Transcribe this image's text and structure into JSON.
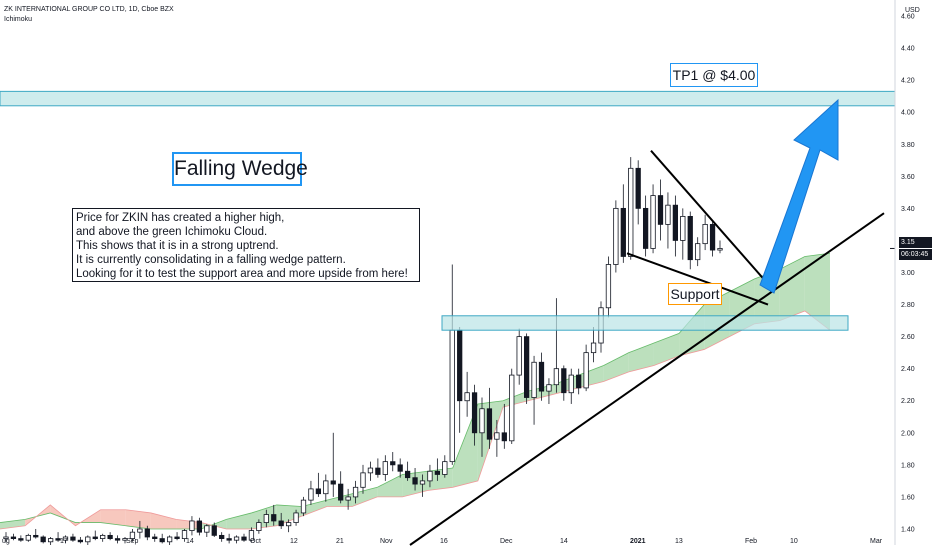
{
  "header": {
    "title": "ZK INTERNATIONAL GROUP CO LTD, 1D, Cboe BZX",
    "indicator": "Ichimoku"
  },
  "annotations": {
    "wedge_title": "Falling Wedge",
    "target": "TP1 @ $4.00",
    "support": "Support",
    "commentary": [
      "Price for ZKIN has created a higher high,",
      "and above the green Ichimoku Cloud.",
      "This shows that it is in a strong uptrend.",
      "It is currently consolidating in a falling wedge pattern.",
      "Looking for it to test the support area and more upside from here!"
    ]
  },
  "price_tags": {
    "last_price": "3.15",
    "countdown": "06:03:45"
  },
  "colors": {
    "up": "#ffffff",
    "down": "#131722",
    "cloud_bull": "#a5d6a7",
    "cloud_bear": "#f4b6a8",
    "zone": "#b9e4e6",
    "zone_border": "#3ea8c4",
    "arrow": "#2196f3",
    "tag_price": "#131722"
  },
  "chart_data": {
    "type": "candlestick",
    "currency": "USD",
    "ylim": [
      1.3,
      4.7
    ],
    "y_ticks": [
      "4.60",
      "4.40",
      "4.20",
      "4.00",
      "3.80",
      "3.60",
      "3.40",
      "3.20",
      "3.00",
      "2.80",
      "2.60",
      "2.40",
      "2.20",
      "2.00",
      "1.80",
      "1.60",
      "1.40"
    ],
    "x_ticks": [
      "ug",
      "17",
      "Sep",
      "14",
      "Oct",
      "12",
      "21",
      "Nov",
      "16",
      "Dec",
      "14",
      "2021",
      "13",
      "Feb",
      "10",
      "Mar"
    ],
    "candles": [
      {
        "o": 1.34,
        "h": 1.38,
        "l": 1.32,
        "c": 1.35
      },
      {
        "o": 1.35,
        "h": 1.37,
        "l": 1.33,
        "c": 1.34
      },
      {
        "o": 1.34,
        "h": 1.36,
        "l": 1.32,
        "c": 1.33
      },
      {
        "o": 1.33,
        "h": 1.37,
        "l": 1.32,
        "c": 1.36
      },
      {
        "o": 1.36,
        "h": 1.4,
        "l": 1.34,
        "c": 1.35
      },
      {
        "o": 1.35,
        "h": 1.36,
        "l": 1.31,
        "c": 1.32
      },
      {
        "o": 1.32,
        "h": 1.35,
        "l": 1.3,
        "c": 1.34
      },
      {
        "o": 1.34,
        "h": 1.38,
        "l": 1.32,
        "c": 1.33
      },
      {
        "o": 1.33,
        "h": 1.36,
        "l": 1.31,
        "c": 1.35
      },
      {
        "o": 1.35,
        "h": 1.37,
        "l": 1.32,
        "c": 1.33
      },
      {
        "o": 1.33,
        "h": 1.35,
        "l": 1.31,
        "c": 1.32
      },
      {
        "o": 1.32,
        "h": 1.36,
        "l": 1.3,
        "c": 1.35
      },
      {
        "o": 1.35,
        "h": 1.39,
        "l": 1.33,
        "c": 1.34
      },
      {
        "o": 1.34,
        "h": 1.37,
        "l": 1.32,
        "c": 1.36
      },
      {
        "o": 1.36,
        "h": 1.38,
        "l": 1.33,
        "c": 1.34
      },
      {
        "o": 1.34,
        "h": 1.36,
        "l": 1.31,
        "c": 1.33
      },
      {
        "o": 1.33,
        "h": 1.35,
        "l": 1.31,
        "c": 1.34
      },
      {
        "o": 1.34,
        "h": 1.4,
        "l": 1.32,
        "c": 1.38
      },
      {
        "o": 1.38,
        "h": 1.45,
        "l": 1.34,
        "c": 1.4
      },
      {
        "o": 1.4,
        "h": 1.42,
        "l": 1.33,
        "c": 1.35
      },
      {
        "o": 1.35,
        "h": 1.37,
        "l": 1.32,
        "c": 1.34
      },
      {
        "o": 1.34,
        "h": 1.37,
        "l": 1.31,
        "c": 1.32
      },
      {
        "o": 1.32,
        "h": 1.36,
        "l": 1.3,
        "c": 1.35
      },
      {
        "o": 1.35,
        "h": 1.38,
        "l": 1.33,
        "c": 1.34
      },
      {
        "o": 1.34,
        "h": 1.4,
        "l": 1.32,
        "c": 1.39
      },
      {
        "o": 1.39,
        "h": 1.48,
        "l": 1.36,
        "c": 1.45
      },
      {
        "o": 1.45,
        "h": 1.47,
        "l": 1.36,
        "c": 1.38
      },
      {
        "o": 1.38,
        "h": 1.43,
        "l": 1.35,
        "c": 1.42
      },
      {
        "o": 1.42,
        "h": 1.44,
        "l": 1.35,
        "c": 1.36
      },
      {
        "o": 1.36,
        "h": 1.38,
        "l": 1.32,
        "c": 1.34
      },
      {
        "o": 1.34,
        "h": 1.37,
        "l": 1.31,
        "c": 1.33
      },
      {
        "o": 1.33,
        "h": 1.36,
        "l": 1.31,
        "c": 1.35
      },
      {
        "o": 1.35,
        "h": 1.37,
        "l": 1.32,
        "c": 1.33
      },
      {
        "o": 1.33,
        "h": 1.41,
        "l": 1.32,
        "c": 1.39
      },
      {
        "o": 1.39,
        "h": 1.46,
        "l": 1.37,
        "c": 1.44
      },
      {
        "o": 1.44,
        "h": 1.52,
        "l": 1.41,
        "c": 1.49
      },
      {
        "o": 1.49,
        "h": 1.55,
        "l": 1.42,
        "c": 1.45
      },
      {
        "o": 1.45,
        "h": 1.5,
        "l": 1.4,
        "c": 1.42
      },
      {
        "o": 1.42,
        "h": 1.46,
        "l": 1.38,
        "c": 1.44
      },
      {
        "o": 1.44,
        "h": 1.52,
        "l": 1.42,
        "c": 1.5
      },
      {
        "o": 1.5,
        "h": 1.6,
        "l": 1.48,
        "c": 1.58
      },
      {
        "o": 1.58,
        "h": 1.7,
        "l": 1.55,
        "c": 1.65
      },
      {
        "o": 1.65,
        "h": 1.75,
        "l": 1.6,
        "c": 1.62
      },
      {
        "o": 1.62,
        "h": 1.74,
        "l": 1.57,
        "c": 1.7
      },
      {
        "o": 1.7,
        "h": 2.0,
        "l": 1.6,
        "c": 1.68
      },
      {
        "o": 1.68,
        "h": 1.76,
        "l": 1.56,
        "c": 1.58
      },
      {
        "o": 1.58,
        "h": 1.65,
        "l": 1.52,
        "c": 1.6
      },
      {
        "o": 1.6,
        "h": 1.7,
        "l": 1.56,
        "c": 1.66
      },
      {
        "o": 1.66,
        "h": 1.8,
        "l": 1.62,
        "c": 1.75
      },
      {
        "o": 1.75,
        "h": 1.82,
        "l": 1.7,
        "c": 1.78
      },
      {
        "o": 1.78,
        "h": 1.84,
        "l": 1.72,
        "c": 1.74
      },
      {
        "o": 1.74,
        "h": 1.86,
        "l": 1.7,
        "c": 1.82
      },
      {
        "o": 1.82,
        "h": 1.88,
        "l": 1.76,
        "c": 1.8
      },
      {
        "o": 1.8,
        "h": 1.84,
        "l": 1.72,
        "c": 1.76
      },
      {
        "o": 1.76,
        "h": 1.82,
        "l": 1.7,
        "c": 1.72
      },
      {
        "o": 1.72,
        "h": 1.78,
        "l": 1.64,
        "c": 1.68
      },
      {
        "o": 1.68,
        "h": 1.74,
        "l": 1.6,
        "c": 1.7
      },
      {
        "o": 1.7,
        "h": 1.8,
        "l": 1.66,
        "c": 1.76
      },
      {
        "o": 1.76,
        "h": 1.84,
        "l": 1.7,
        "c": 1.74
      },
      {
        "o": 1.74,
        "h": 1.86,
        "l": 1.72,
        "c": 1.82
      },
      {
        "o": 1.82,
        "h": 3.05,
        "l": 1.8,
        "c": 2.64
      },
      {
        "o": 2.64,
        "h": 2.66,
        "l": 2.0,
        "c": 2.2
      },
      {
        "o": 2.2,
        "h": 2.38,
        "l": 2.1,
        "c": 2.25
      },
      {
        "o": 2.25,
        "h": 2.3,
        "l": 1.92,
        "c": 2.0
      },
      {
        "o": 2.0,
        "h": 2.22,
        "l": 1.85,
        "c": 2.15
      },
      {
        "o": 2.15,
        "h": 2.28,
        "l": 1.9,
        "c": 1.96
      },
      {
        "o": 1.96,
        "h": 2.08,
        "l": 1.85,
        "c": 2.0
      },
      {
        "o": 2.0,
        "h": 2.18,
        "l": 1.9,
        "c": 1.95
      },
      {
        "o": 1.95,
        "h": 2.4,
        "l": 1.93,
        "c": 2.36
      },
      {
        "o": 2.36,
        "h": 2.65,
        "l": 2.3,
        "c": 2.6
      },
      {
        "o": 2.6,
        "h": 2.62,
        "l": 2.18,
        "c": 2.22
      },
      {
        "o": 2.22,
        "h": 2.48,
        "l": 2.05,
        "c": 2.44
      },
      {
        "o": 2.44,
        "h": 2.5,
        "l": 2.2,
        "c": 2.26
      },
      {
        "o": 2.26,
        "h": 2.34,
        "l": 2.18,
        "c": 2.3
      },
      {
        "o": 2.3,
        "h": 2.84,
        "l": 2.25,
        "c": 2.4
      },
      {
        "o": 2.4,
        "h": 2.42,
        "l": 2.2,
        "c": 2.25
      },
      {
        "o": 2.25,
        "h": 2.4,
        "l": 2.18,
        "c": 2.36
      },
      {
        "o": 2.36,
        "h": 2.4,
        "l": 2.24,
        "c": 2.28
      },
      {
        "o": 2.28,
        "h": 2.55,
        "l": 2.26,
        "c": 2.5
      },
      {
        "o": 2.5,
        "h": 2.66,
        "l": 2.44,
        "c": 2.56
      },
      {
        "o": 2.56,
        "h": 2.82,
        "l": 2.5,
        "c": 2.78
      },
      {
        "o": 2.78,
        "h": 3.1,
        "l": 2.72,
        "c": 3.05
      },
      {
        "o": 3.05,
        "h": 3.45,
        "l": 3.0,
        "c": 3.4
      },
      {
        "o": 3.4,
        "h": 3.55,
        "l": 3.06,
        "c": 3.1
      },
      {
        "o": 3.1,
        "h": 3.72,
        "l": 3.08,
        "c": 3.65
      },
      {
        "o": 3.65,
        "h": 3.7,
        "l": 3.3,
        "c": 3.4
      },
      {
        "o": 3.4,
        "h": 3.48,
        "l": 3.1,
        "c": 3.15
      },
      {
        "o": 3.15,
        "h": 3.55,
        "l": 3.12,
        "c": 3.48
      },
      {
        "o": 3.48,
        "h": 3.58,
        "l": 3.2,
        "c": 3.3
      },
      {
        "o": 3.3,
        "h": 3.5,
        "l": 3.15,
        "c": 3.42
      },
      {
        "o": 3.42,
        "h": 3.48,
        "l": 3.1,
        "c": 3.2
      },
      {
        "o": 3.2,
        "h": 3.4,
        "l": 3.08,
        "c": 3.35
      },
      {
        "o": 3.35,
        "h": 3.38,
        "l": 3.02,
        "c": 3.08
      },
      {
        "o": 3.08,
        "h": 3.22,
        "l": 3.04,
        "c": 3.18
      },
      {
        "o": 3.18,
        "h": 3.36,
        "l": 3.14,
        "c": 3.3
      },
      {
        "o": 3.3,
        "h": 3.32,
        "l": 3.1,
        "c": 3.14
      },
      {
        "o": 3.14,
        "h": 3.2,
        "l": 3.12,
        "c": 3.15
      }
    ],
    "cloud": [
      {
        "a": 1.44,
        "b": 1.4
      },
      {
        "a": 1.46,
        "b": 1.42
      },
      {
        "a": 1.5,
        "b": 1.55
      },
      {
        "a": 1.44,
        "b": 1.42
      },
      {
        "a": 1.44,
        "b": 1.52
      },
      {
        "a": 1.42,
        "b": 1.52
      },
      {
        "a": 1.4,
        "b": 1.5
      },
      {
        "a": 1.4,
        "b": 1.46
      },
      {
        "a": 1.4,
        "b": 1.44
      },
      {
        "a": 1.46,
        "b": 1.4
      },
      {
        "a": 1.5,
        "b": 1.4
      },
      {
        "a": 1.55,
        "b": 1.42
      },
      {
        "a": 1.54,
        "b": 1.48
      },
      {
        "a": 1.58,
        "b": 1.54
      },
      {
        "a": 1.62,
        "b": 1.54
      },
      {
        "a": 1.66,
        "b": 1.6
      },
      {
        "a": 1.74,
        "b": 1.6
      },
      {
        "a": 1.76,
        "b": 1.64
      },
      {
        "a": 1.78,
        "b": 1.66
      },
      {
        "a": 2.18,
        "b": 1.7
      },
      {
        "a": 2.2,
        "b": 2.16
      },
      {
        "a": 2.26,
        "b": 2.2
      },
      {
        "a": 2.3,
        "b": 2.24
      },
      {
        "a": 2.36,
        "b": 2.28
      },
      {
        "a": 2.42,
        "b": 2.32
      },
      {
        "a": 2.5,
        "b": 2.38
      },
      {
        "a": 2.56,
        "b": 2.42
      },
      {
        "a": 2.62,
        "b": 2.48
      },
      {
        "a": 2.8,
        "b": 2.52
      },
      {
        "a": 2.88,
        "b": 2.6
      },
      {
        "a": 2.96,
        "b": 2.68
      },
      {
        "a": 3.02,
        "b": 2.7
      },
      {
        "a": 3.1,
        "b": 2.76
      },
      {
        "a": 3.12,
        "b": 2.64
      }
    ]
  }
}
